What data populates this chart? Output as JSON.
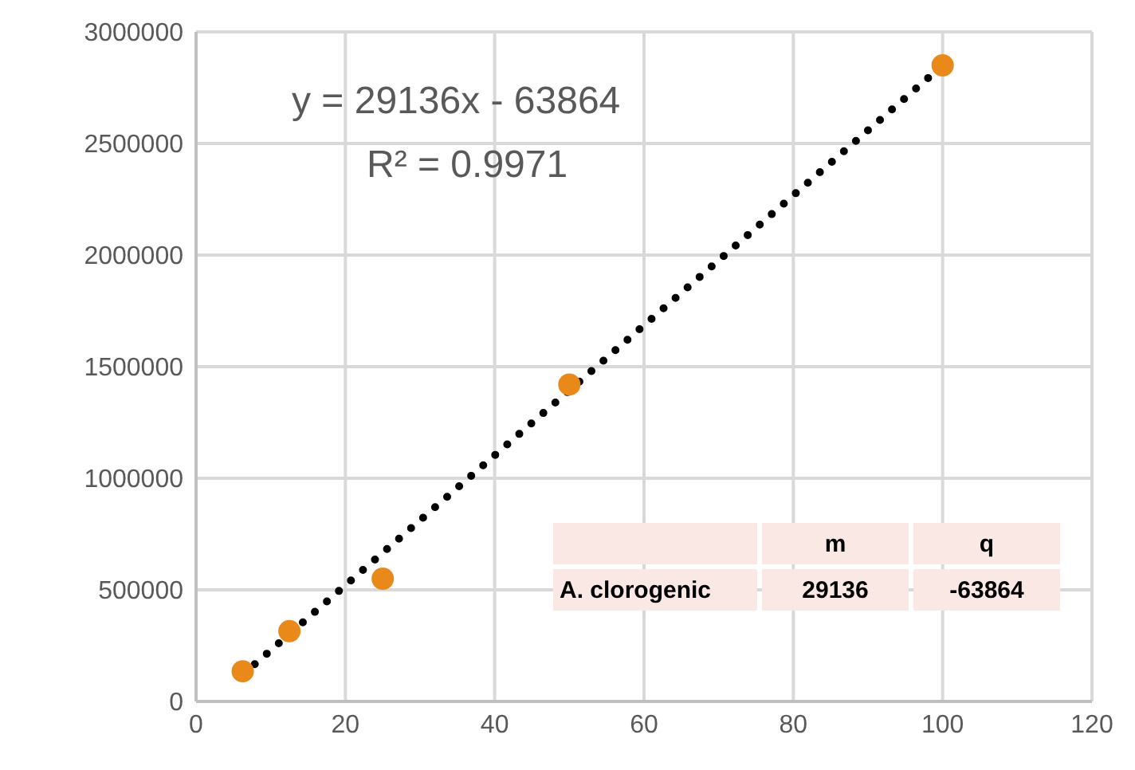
{
  "chart_data": {
    "type": "scatter",
    "xlim": [
      0,
      120
    ],
    "xticks": [
      0,
      20,
      40,
      60,
      80,
      100,
      120
    ],
    "ylim": [
      0,
      3000000
    ],
    "yticks": [
      0,
      500000,
      1000000,
      1500000,
      2000000,
      2500000,
      3000000
    ],
    "grid": true,
    "marker": "circle",
    "series": [
      {
        "color": "#e8891a",
        "x": [
          6.25,
          12.5,
          25,
          50,
          100
        ],
        "values": [
          135000,
          315000,
          550000,
          1420000,
          2850000
        ]
      },
      {
        "type": "line",
        "color": "#000000",
        "line_style": "dotted",
        "marker": "none",
        "x": [
          6.25,
          100
        ],
        "values": [
          120000,
          2850000
        ]
      }
    ],
    "annotations": [
      "y = 29136x - 63864",
      "R² = 0.9971",
      "m",
      "q",
      "A. clorogenic",
      "29136",
      "-63864"
    ]
  }
}
